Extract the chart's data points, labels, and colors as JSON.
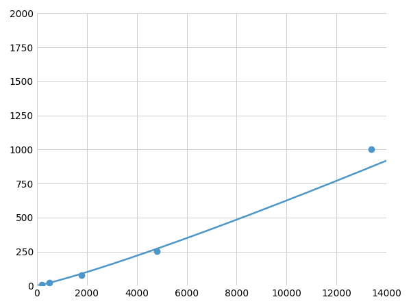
{
  "x": [
    200,
    500,
    1800,
    4800,
    13400
  ],
  "y": [
    8,
    20,
    75,
    253,
    1003
  ],
  "line_color": "#4d96c9",
  "marker_color": "#4d96c9",
  "marker_size": 6,
  "line_width": 1.8,
  "xlim": [
    0,
    14000
  ],
  "ylim": [
    0,
    2000
  ],
  "xticks": [
    0,
    2000,
    4000,
    6000,
    8000,
    10000,
    12000,
    14000
  ],
  "yticks": [
    0,
    250,
    500,
    750,
    1000,
    1250,
    1500,
    1750,
    2000
  ],
  "grid_color": "#d0d0d0",
  "background_color": "#ffffff",
  "tick_fontsize": 10
}
